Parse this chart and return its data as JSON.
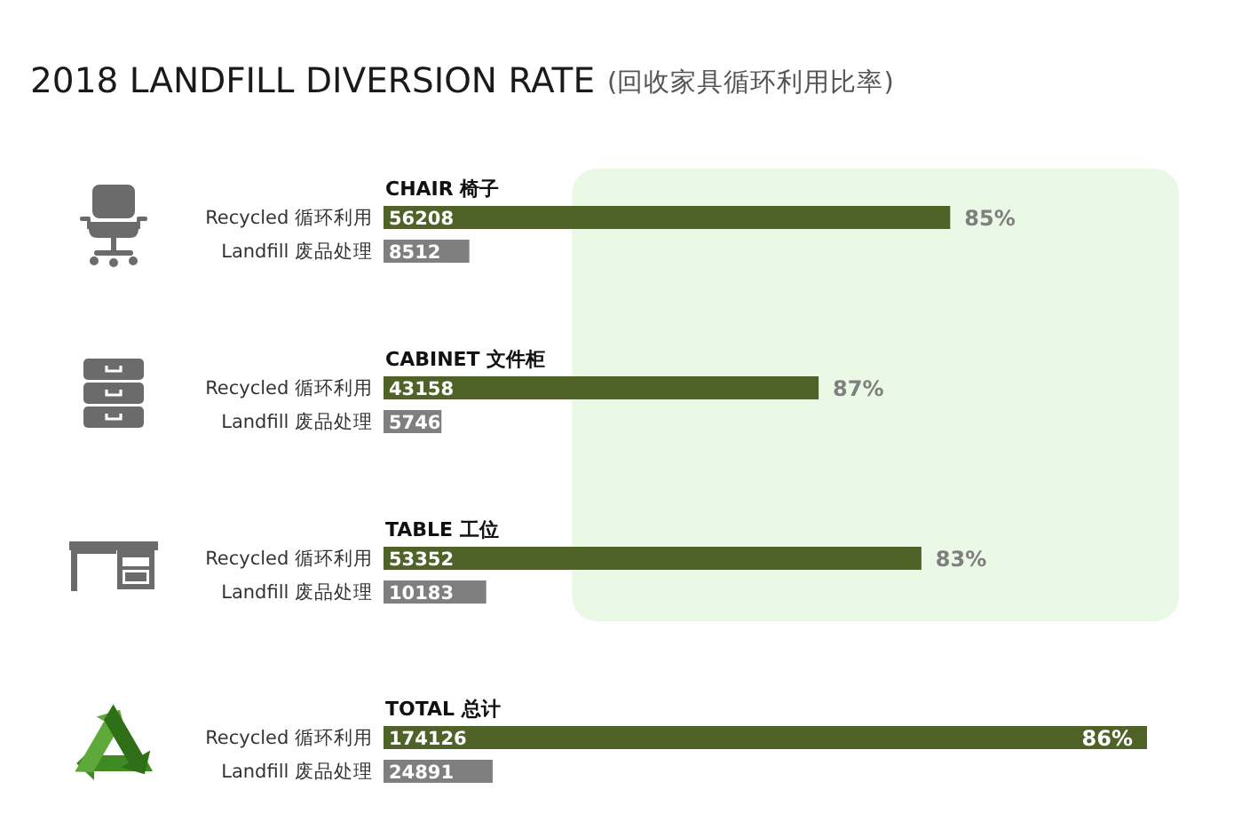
{
  "chart_data": [
    {
      "type": "bar",
      "orientation": "horizontal",
      "title": "2018 LANDFILL DIVERSION RATE",
      "subtitle": "(回收家具循环利用比率)",
      "tick_labels": "y",
      "data_labels": true,
      "categories": [
        "CHAIR 椅子",
        "CABINET 文件柜",
        "TABLE 工位"
      ],
      "series": [
        {
          "name": "Recycled 循环利用",
          "color": "#4f6228",
          "values": [
            56208,
            43158,
            53352
          ]
        },
        {
          "name": "Landfill 废品处理",
          "color": "#7f7f7f",
          "values": [
            8512,
            5746,
            10183
          ]
        }
      ],
      "bands": [
        {
          "axis": "x",
          "from": 18700,
          "to": 78900,
          "color": "#eaf8e6"
        }
      ],
      "annotations": [
        "85%",
        "87%",
        "83%"
      ]
    },
    {
      "type": "bar",
      "orientation": "horizontal",
      "tick_labels": "y",
      "data_labels": true,
      "categories": [
        "TOTAL 总计"
      ],
      "series": [
        {
          "name": "Recycled 循环利用",
          "color": "#4f6228",
          "values": [
            174126
          ]
        },
        {
          "name": "Landfill 废品处理",
          "color": "#7f7f7f",
          "values": [
            24891
          ]
        }
      ],
      "annotations": [
        "86%"
      ]
    }
  ]
}
